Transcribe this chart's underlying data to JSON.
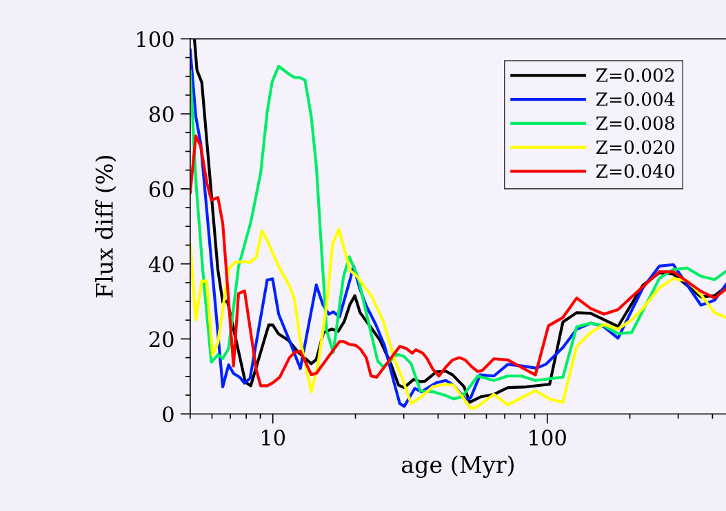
{
  "chart_data": {
    "type": "line",
    "xlabel": "age (Myr)",
    "ylabel": "Flux diff (%)",
    "log": "x",
    "xlim": [
      5,
      448
    ],
    "ylim": [
      0,
      100
    ],
    "xticks": [
      10,
      100
    ],
    "yticks": [
      0,
      20,
      40,
      60,
      80,
      100
    ],
    "legend": "top right",
    "grid": false,
    "marker": "none",
    "line_style": "solid",
    "series": [
      {
        "name": "Z=0.002",
        "color": "#000000",
        "x": [
          5.18,
          5.29,
          5.51,
          6.3,
          6.57,
          6.83,
          7.94,
          8.31,
          9.66,
          10.0,
          10.5,
          11.4,
          12.4,
          13.8,
          14.4,
          15.3,
          16.4,
          17.3,
          18.2,
          19.1,
          19.9,
          20.8,
          23.0,
          24.6,
          26.9,
          28.7,
          30.1,
          32.6,
          34.5,
          35.8,
          39.4,
          42.7,
          45.2,
          49.7,
          52.2,
          57.4,
          63.9,
          71.8,
          83.6,
          102,
          114,
          128,
          144,
          181,
          223,
          256,
          288,
          363,
          407,
          448
        ],
        "values": [
          100,
          91.7,
          88.4,
          38.7,
          29.8,
          30.1,
          8.5,
          7.5,
          23.7,
          23.7,
          21.3,
          19.6,
          16.4,
          13.4,
          14.5,
          21.7,
          22.6,
          22.0,
          24.6,
          29.2,
          31.5,
          27.0,
          22.6,
          19.6,
          13.4,
          7.7,
          7.0,
          9.2,
          8.6,
          8.7,
          11.2,
          11.4,
          10.4,
          7.3,
          3.1,
          4.6,
          5.2,
          7.0,
          7.2,
          7.9,
          24.5,
          27.0,
          26.8,
          23.3,
          34.3,
          37.6,
          37.3,
          31.2,
          31.5,
          33.9
        ]
      },
      {
        "name": "Z=0.004",
        "color": "#0022ff",
        "x": [
          5.0,
          5.24,
          5.46,
          6.57,
          6.9,
          7.19,
          7.57,
          7.89,
          8.26,
          9.54,
          9.98,
          10.5,
          11.5,
          12.6,
          14.4,
          15.2,
          16.0,
          16.6,
          17.5,
          19.2,
          19.7,
          20.7,
          21.9,
          23.7,
          25.5,
          27.6,
          29.0,
          30.1,
          32.9,
          34.8,
          39.4,
          42.7,
          45.5,
          50.7,
          52.6,
          56.9,
          63.9,
          71.8,
          80.6,
          91.3,
          98.7,
          114,
          128,
          144,
          161,
          181,
          223,
          256,
          288,
          363,
          407,
          448
        ],
        "values": [
          97.0,
          79.3,
          72.1,
          7.2,
          13.1,
          10.8,
          9.8,
          8.2,
          9.5,
          35.7,
          36.0,
          26.6,
          19.5,
          12.1,
          34.4,
          29.2,
          26.6,
          27.2,
          25.9,
          36.3,
          39.4,
          33.6,
          28.8,
          23.9,
          18.3,
          8.6,
          2.8,
          2.0,
          6.8,
          5.9,
          8.3,
          8.9,
          7.7,
          3.7,
          4.3,
          10.4,
          10.1,
          13.2,
          12.8,
          12.2,
          13.2,
          17.7,
          22.6,
          24.2,
          23.2,
          20.2,
          33.6,
          39.4,
          39.8,
          29.0,
          30.3,
          34.5
        ]
      },
      {
        "name": "Z=0.008",
        "color": "#00ee66",
        "x": [
          5.0,
          5.24,
          5.56,
          5.97,
          6.31,
          6.57,
          6.9,
          7.5,
          8.31,
          9.03,
          9.54,
          9.94,
          10.5,
          11.5,
          12.0,
          12.5,
          13.1,
          13.8,
          14.4,
          15.7,
          16.6,
          18.1,
          19.0,
          20.5,
          22.1,
          24.1,
          25.3,
          28.4,
          30.1,
          31.9,
          34.5,
          38.3,
          42.7,
          45.5,
          48.8,
          51.7,
          55.8,
          63.9,
          71.8,
          80.6,
          90.5,
          114,
          128,
          144,
          161,
          181,
          203,
          223,
          256,
          288,
          323,
          363,
          407,
          448
        ],
        "values": [
          91.4,
          62.3,
          38.0,
          13.8,
          15.8,
          14.8,
          17.4,
          39.3,
          51.1,
          64.2,
          80.6,
          88.5,
          92.7,
          90.5,
          89.7,
          89.7,
          89.0,
          79.3,
          66.2,
          22.3,
          16.4,
          36.7,
          41.9,
          36.1,
          25.7,
          14.1,
          12.5,
          15.9,
          15.3,
          13.4,
          6.1,
          5.9,
          4.9,
          4.0,
          4.6,
          6.8,
          10.1,
          8.9,
          10.1,
          10.1,
          8.9,
          9.8,
          23.2,
          24.2,
          23.5,
          21.4,
          21.7,
          27.5,
          36.1,
          38.5,
          38.9,
          36.7,
          35.8,
          38.0
        ]
      },
      {
        "name": "Z=0.020",
        "color": "#ffff00",
        "x": [
          5.0,
          5.24,
          5.51,
          5.74,
          6.03,
          6.31,
          6.9,
          7.29,
          7.75,
          8.26,
          8.7,
          9.12,
          9.54,
          10.5,
          11.5,
          12.0,
          12.6,
          13.8,
          14.6,
          15.7,
          16.5,
          17.4,
          18.1,
          19.1,
          20.5,
          20.8,
          23.0,
          25.3,
          27.9,
          29.5,
          31.9,
          34.8,
          38.3,
          42.7,
          45.5,
          49.3,
          52.6,
          55.3,
          63.9,
          71.8,
          90.5,
          102,
          114,
          128,
          144,
          161,
          181,
          203,
          223,
          256,
          288,
          323,
          363,
          407,
          448
        ],
        "values": [
          45.2,
          25.0,
          35.4,
          35.4,
          15.8,
          19.0,
          38.7,
          40.4,
          40.6,
          40.4,
          41.7,
          48.8,
          46.2,
          39.3,
          34.1,
          30.5,
          19.6,
          5.9,
          13.1,
          28.8,
          45.2,
          49.2,
          44.6,
          38.3,
          36.3,
          35.5,
          31.2,
          24.5,
          14.1,
          9.8,
          2.8,
          4.6,
          7.3,
          7.9,
          7.7,
          4.3,
          1.5,
          1.8,
          5.2,
          2.4,
          6.2,
          4.0,
          3.1,
          18.0,
          21.7,
          23.9,
          22.6,
          25.1,
          28.1,
          33.6,
          36.1,
          35.5,
          31.8,
          27.0,
          25.7
        ]
      },
      {
        "name": "Z=0.040",
        "color": "#ff0000",
        "x": [
          5.0,
          5.24,
          5.46,
          5.75,
          5.97,
          6.31,
          6.57,
          7.19,
          7.5,
          7.89,
          8.7,
          9.03,
          9.55,
          10.0,
          10.6,
          11.5,
          12.0,
          12.6,
          13.8,
          14.4,
          17.5,
          18.1,
          19.1,
          20.0,
          20.8,
          21.9,
          22.8,
          23.9,
          29.0,
          30.7,
          32.2,
          33.2,
          35.2,
          36.5,
          38.3,
          40.3,
          42.7,
          45.2,
          47.9,
          50.2,
          53.2,
          55.8,
          58.0,
          63.9,
          71.8,
          90.5,
          101,
          114,
          128,
          144,
          161,
          181,
          203,
          223,
          256,
          288,
          363,
          407,
          448
        ],
        "values": [
          59.0,
          74.1,
          71.4,
          61.6,
          57.0,
          57.7,
          50.8,
          12.8,
          32.1,
          32.8,
          11.8,
          7.5,
          7.5,
          8.3,
          9.8,
          15.0,
          16.4,
          16.7,
          10.5,
          10.8,
          19.3,
          19.3,
          18.5,
          18.3,
          17.4,
          15.0,
          10.1,
          9.8,
          18.0,
          17.4,
          16.2,
          17.1,
          16.2,
          14.7,
          11.9,
          10.1,
          12.5,
          14.4,
          15.0,
          14.4,
          12.5,
          11.3,
          11.6,
          14.7,
          14.4,
          10.4,
          23.5,
          25.7,
          30.9,
          28.1,
          26.6,
          27.8,
          31.2,
          33.9,
          37.9,
          37.9,
          32.7,
          30.9,
          33.3
        ]
      }
    ]
  }
}
